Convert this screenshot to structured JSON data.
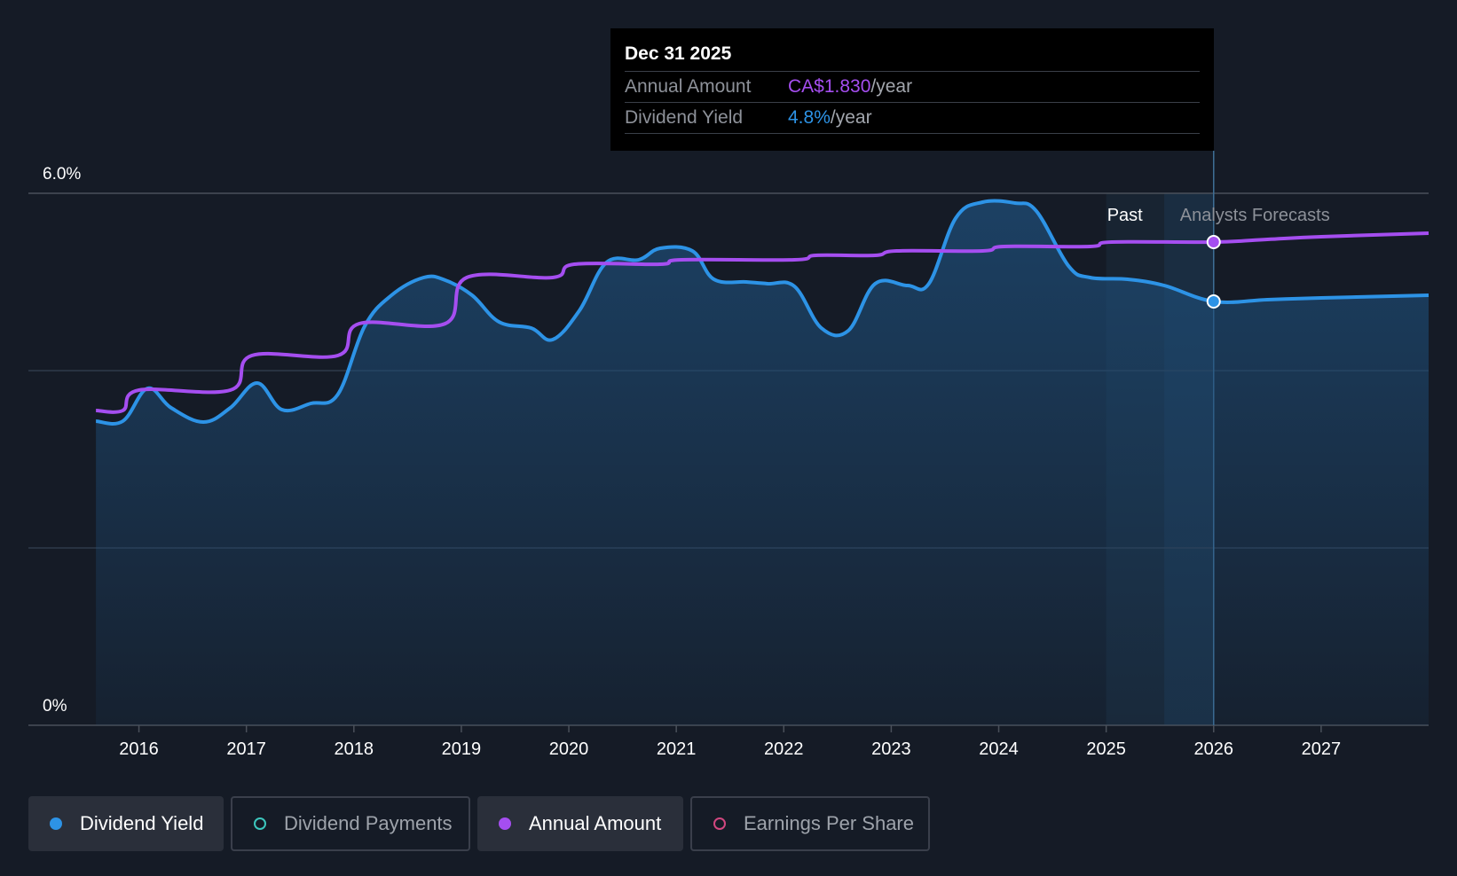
{
  "tooltip": {
    "date": "Dec 31 2025",
    "rows": [
      {
        "label": "Annual Amount",
        "value": "CA$1.830",
        "unit": "/year"
      },
      {
        "label": "Dividend Yield",
        "value": "4.8%",
        "unit": "/year"
      }
    ]
  },
  "legend": [
    {
      "label": "Dividend Yield",
      "active": true,
      "dot": "filled",
      "color": "#2d93e6"
    },
    {
      "label": "Dividend Payments",
      "active": false,
      "dot": "hollow",
      "color": "#3cc6bd"
    },
    {
      "label": "Annual Amount",
      "active": true,
      "dot": "filled",
      "color": "#a54ef0"
    },
    {
      "label": "Earnings Per Share",
      "active": false,
      "dot": "hollow",
      "color": "#d1477f"
    }
  ],
  "chart_data": {
    "type": "line",
    "y_ticks": [
      "6.0%",
      "0%"
    ],
    "ylim": [
      0,
      6.0
    ],
    "x_tick_labels": [
      "2016",
      "2017",
      "2018",
      "2019",
      "2020",
      "2021",
      "2022",
      "2023",
      "2024",
      "2025",
      "2026",
      "2027"
    ],
    "xlim": [
      2015.5,
      2028.0
    ],
    "past_label": "Past",
    "forecast_label": "Analysts Forecasts",
    "past_band": [
      2025.0,
      2025.54
    ],
    "marker_x": 2026.0,
    "colors": {
      "yield": "#2d93e6",
      "annual": "#a54ef0"
    },
    "series": [
      {
        "name": "Dividend Yield",
        "key": "yield",
        "area": true,
        "points": [
          [
            2015.6,
            3.43
          ],
          [
            2015.85,
            3.43
          ],
          [
            2016.08,
            3.8
          ],
          [
            2016.3,
            3.58
          ],
          [
            2016.6,
            3.42
          ],
          [
            2016.85,
            3.58
          ],
          [
            2017.1,
            3.86
          ],
          [
            2017.33,
            3.56
          ],
          [
            2017.6,
            3.63
          ],
          [
            2017.85,
            3.73
          ],
          [
            2018.1,
            4.5
          ],
          [
            2018.35,
            4.85
          ],
          [
            2018.65,
            5.05
          ],
          [
            2018.85,
            5.02
          ],
          [
            2019.1,
            4.85
          ],
          [
            2019.35,
            4.55
          ],
          [
            2019.65,
            4.48
          ],
          [
            2019.85,
            4.35
          ],
          [
            2020.1,
            4.68
          ],
          [
            2020.35,
            5.22
          ],
          [
            2020.65,
            5.25
          ],
          [
            2020.85,
            5.38
          ],
          [
            2021.15,
            5.35
          ],
          [
            2021.35,
            5.03
          ],
          [
            2021.65,
            5.0
          ],
          [
            2021.85,
            4.98
          ],
          [
            2022.1,
            4.95
          ],
          [
            2022.35,
            4.48
          ],
          [
            2022.6,
            4.45
          ],
          [
            2022.85,
            4.98
          ],
          [
            2023.15,
            4.96
          ],
          [
            2023.35,
            4.98
          ],
          [
            2023.6,
            5.72
          ],
          [
            2023.85,
            5.9
          ],
          [
            2024.15,
            5.89
          ],
          [
            2024.35,
            5.8
          ],
          [
            2024.65,
            5.18
          ],
          [
            2024.85,
            5.05
          ],
          [
            2025.2,
            5.03
          ],
          [
            2025.54,
            4.96
          ],
          [
            2026.0,
            4.78
          ],
          [
            2026.5,
            4.8
          ],
          [
            2027.0,
            4.82
          ],
          [
            2028.0,
            4.85
          ]
        ]
      },
      {
        "name": "Annual Amount",
        "key": "annual",
        "area": false,
        "points": [
          [
            2015.6,
            3.55
          ],
          [
            2015.85,
            3.55
          ],
          [
            2016.0,
            3.78
          ],
          [
            2016.85,
            3.78
          ],
          [
            2017.05,
            4.17
          ],
          [
            2017.85,
            4.17
          ],
          [
            2018.05,
            4.53
          ],
          [
            2018.85,
            4.53
          ],
          [
            2019.05,
            5.05
          ],
          [
            2019.85,
            5.05
          ],
          [
            2020.05,
            5.2
          ],
          [
            2020.85,
            5.2
          ],
          [
            2021.05,
            5.25
          ],
          [
            2022.1,
            5.25
          ],
          [
            2022.3,
            5.3
          ],
          [
            2022.85,
            5.3
          ],
          [
            2023.05,
            5.35
          ],
          [
            2023.85,
            5.35
          ],
          [
            2024.05,
            5.4
          ],
          [
            2024.85,
            5.4
          ],
          [
            2025.05,
            5.45
          ],
          [
            2026.0,
            5.45
          ],
          [
            2026.5,
            5.48
          ],
          [
            2027.0,
            5.51
          ],
          [
            2028.0,
            5.55
          ]
        ]
      }
    ]
  }
}
